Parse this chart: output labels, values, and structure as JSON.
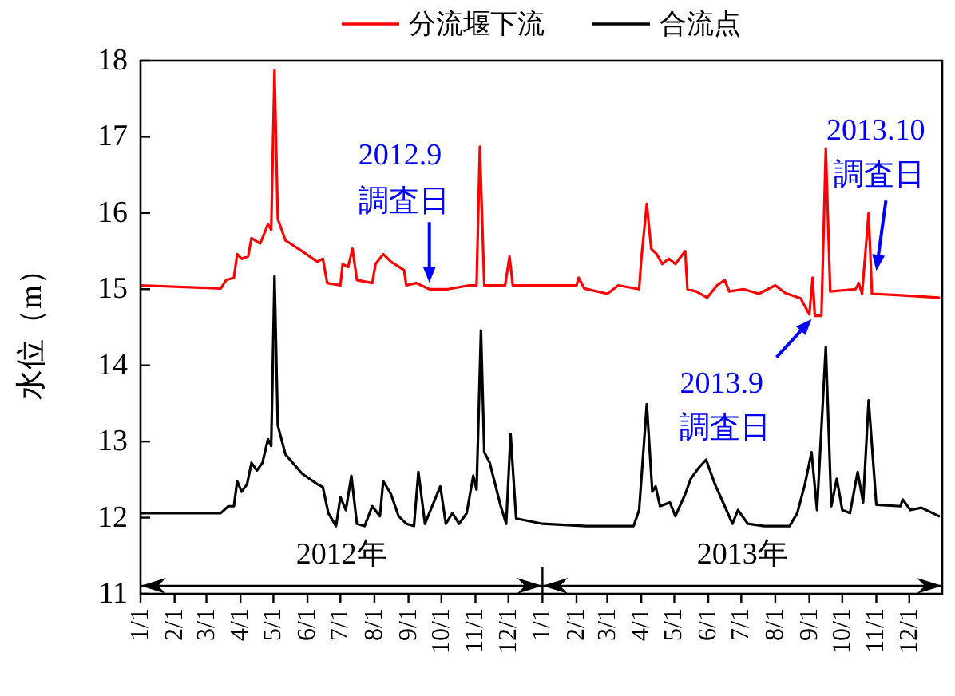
{
  "chart_data": {
    "type": "line",
    "ylabel": "水位（m）",
    "legend": "top",
    "xlim": [
      "2012-01-01",
      "2013-12-31"
    ],
    "ylim": [
      11,
      18
    ],
    "yticks": [
      11,
      12,
      13,
      14,
      15,
      16,
      17,
      18
    ],
    "xticks": [
      {
        "value": "2012-01-01",
        "label": "1/1"
      },
      {
        "value": "2012-02-01",
        "label": "2/1"
      },
      {
        "value": "2012-03-01",
        "label": "3/1"
      },
      {
        "value": "2012-04-01",
        "label": "4/1"
      },
      {
        "value": "2012-05-01",
        "label": "5/1"
      },
      {
        "value": "2012-06-01",
        "label": "6/1"
      },
      {
        "value": "2012-07-01",
        "label": "7/1"
      },
      {
        "value": "2012-08-01",
        "label": "8/1"
      },
      {
        "value": "2012-09-01",
        "label": "9/1"
      },
      {
        "value": "2012-10-01",
        "label": "10/1"
      },
      {
        "value": "2012-11-01",
        "label": "11/1"
      },
      {
        "value": "2012-12-01",
        "label": "12/1"
      },
      {
        "value": "2013-01-01",
        "label": "1/1"
      },
      {
        "value": "2013-02-01",
        "label": "2/1"
      },
      {
        "value": "2013-03-01",
        "label": "3/1"
      },
      {
        "value": "2013-04-01",
        "label": "4/1"
      },
      {
        "value": "2013-05-01",
        "label": "5/1"
      },
      {
        "value": "2013-06-01",
        "label": "6/1"
      },
      {
        "value": "2013-07-01",
        "label": "7/1"
      },
      {
        "value": "2013-08-01",
        "label": "8/1"
      },
      {
        "value": "2013-09-01",
        "label": "9/1"
      },
      {
        "value": "2013-10-01",
        "label": "10/1"
      },
      {
        "value": "2013-11-01",
        "label": "11/1"
      },
      {
        "value": "2013-12-01",
        "label": "12/1"
      }
    ],
    "series": [
      {
        "name": "分流堰下流",
        "color": "#ff0000",
        "x": [
          "2012-01-01",
          "2012-03-14",
          "2012-03-19",
          "2012-03-26",
          "2012-03-29",
          "2012-04-02",
          "2012-04-08",
          "2012-04-11",
          "2012-04-19",
          "2012-04-26",
          "2012-04-29",
          "2012-05-02",
          "2012-05-05",
          "2012-05-12",
          "2012-05-27",
          "2012-06-10",
          "2012-06-15",
          "2012-06-19",
          "2012-07-01",
          "2012-07-03",
          "2012-07-08",
          "2012-07-12",
          "2012-07-16",
          "2012-07-30",
          "2012-08-02",
          "2012-08-09",
          "2012-08-16",
          "2012-08-28",
          "2012-08-30",
          "2012-09-08",
          "2012-09-20",
          "2012-10-07",
          "2012-10-26",
          "2012-11-02",
          "2012-11-05",
          "2012-11-09",
          "2012-11-28",
          "2012-12-02",
          "2012-12-05",
          "2013-01-01",
          "2013-02-01",
          "2013-02-03",
          "2013-02-08",
          "2013-03-01",
          "2013-03-11",
          "2013-03-30",
          "2013-04-01",
          "2013-04-06",
          "2013-04-10",
          "2013-04-15",
          "2013-04-20",
          "2013-04-26",
          "2013-05-02",
          "2013-05-11",
          "2013-05-13",
          "2013-05-21",
          "2013-05-31",
          "2013-06-09",
          "2013-06-16",
          "2013-06-20",
          "2013-07-03",
          "2013-07-17",
          "2013-08-01",
          "2013-08-10",
          "2013-08-24",
          "2013-09-01",
          "2013-09-04",
          "2013-09-06",
          "2013-09-12",
          "2013-09-16",
          "2013-09-20",
          "2013-10-13",
          "2013-10-16",
          "2013-10-19",
          "2013-10-25",
          "2013-10-28",
          "2013-11-23",
          "2013-12-28"
        ],
        "values": [
          15.05,
          15.01,
          15.12,
          15.15,
          15.46,
          15.4,
          15.43,
          15.67,
          15.6,
          15.85,
          15.78,
          17.87,
          15.92,
          15.64,
          15.5,
          15.36,
          15.4,
          15.08,
          15.05,
          15.33,
          15.29,
          15.53,
          15.12,
          15.08,
          15.33,
          15.46,
          15.36,
          15.25,
          15.05,
          15.08,
          15.0,
          15.0,
          15.05,
          15.05,
          16.87,
          15.05,
          15.05,
          15.43,
          15.05,
          15.05,
          15.05,
          15.15,
          15.01,
          14.94,
          15.05,
          15.0,
          15.4,
          16.12,
          15.53,
          15.46,
          15.33,
          15.4,
          15.33,
          15.5,
          15.0,
          14.97,
          14.89,
          15.05,
          15.12,
          14.97,
          15.0,
          14.94,
          15.05,
          14.95,
          14.88,
          14.67,
          15.15,
          14.65,
          14.65,
          16.85,
          14.97,
          15.0,
          15.08,
          14.94,
          16.0,
          14.94,
          14.92,
          14.89
        ]
      },
      {
        "name": "合流点",
        "color": "#000000",
        "x": [
          "2012-01-01",
          "2012-03-14",
          "2012-03-21",
          "2012-03-26",
          "2012-03-29",
          "2012-04-02",
          "2012-04-07",
          "2012-04-11",
          "2012-04-16",
          "2012-04-21",
          "2012-04-26",
          "2012-04-29",
          "2012-05-02",
          "2012-05-05",
          "2012-05-12",
          "2012-05-27",
          "2012-06-10",
          "2012-06-15",
          "2012-06-20",
          "2012-06-27",
          "2012-07-01",
          "2012-07-06",
          "2012-07-11",
          "2012-07-16",
          "2012-07-23",
          "2012-07-30",
          "2012-08-06",
          "2012-08-09",
          "2012-08-16",
          "2012-08-23",
          "2012-08-30",
          "2012-09-06",
          "2012-09-10",
          "2012-09-16",
          "2012-09-30",
          "2012-10-05",
          "2012-10-11",
          "2012-10-17",
          "2012-10-24",
          "2012-10-30",
          "2012-11-02",
          "2012-11-06",
          "2012-11-09",
          "2012-11-14",
          "2012-11-24",
          "2012-11-29",
          "2012-12-03",
          "2012-12-08",
          "2013-01-01",
          "2013-02-10",
          "2013-03-25",
          "2013-03-30",
          "2013-04-06",
          "2013-04-11",
          "2013-04-14",
          "2013-04-18",
          "2013-04-27",
          "2013-05-02",
          "2013-05-11",
          "2013-05-16",
          "2013-05-23",
          "2013-05-30",
          "2013-06-07",
          "2013-06-16",
          "2013-06-23",
          "2013-06-28",
          "2013-07-07",
          "2013-07-22",
          "2013-08-14",
          "2013-08-21",
          "2013-08-28",
          "2013-09-03",
          "2013-09-08",
          "2013-09-16",
          "2013-09-21",
          "2013-09-26",
          "2013-10-01",
          "2013-10-08",
          "2013-10-15",
          "2013-10-20",
          "2013-10-25",
          "2013-11-01",
          "2013-11-23",
          "2013-11-25",
          "2013-12-02",
          "2013-12-12",
          "2013-12-28"
        ],
        "values": [
          12.06,
          12.06,
          12.15,
          12.15,
          12.48,
          12.34,
          12.44,
          12.72,
          12.62,
          12.72,
          13.03,
          12.94,
          15.17,
          13.21,
          12.83,
          12.58,
          12.44,
          12.4,
          12.06,
          11.89,
          12.27,
          12.1,
          12.55,
          11.92,
          11.89,
          12.15,
          12.02,
          12.48,
          12.31,
          12.02,
          11.92,
          11.89,
          12.6,
          11.92,
          12.41,
          11.92,
          12.06,
          11.92,
          12.06,
          12.55,
          12.37,
          14.46,
          12.86,
          12.72,
          12.15,
          11.92,
          13.1,
          11.99,
          11.92,
          11.89,
          11.89,
          12.1,
          13.49,
          12.34,
          12.41,
          12.15,
          12.2,
          12.02,
          12.31,
          12.51,
          12.65,
          12.76,
          12.44,
          12.15,
          11.92,
          12.1,
          11.92,
          11.89,
          11.89,
          12.06,
          12.44,
          12.86,
          12.1,
          14.24,
          12.15,
          12.51,
          12.1,
          12.06,
          12.6,
          12.2,
          13.54,
          12.17,
          12.15,
          12.24,
          12.1,
          12.13,
          12.02
        ]
      }
    ],
    "annotations": [
      {
        "text": "2012.9\n調査日",
        "x": "2012-09-20",
        "y": 15.0
      },
      {
        "text": "2013.9\n調査日",
        "x": "2013-09-06",
        "y": 14.65
      },
      {
        "text": "2013.10\n調査日",
        "x": "2013-11-01",
        "y": 15.2
      },
      "2012年",
      "2013年"
    ]
  }
}
